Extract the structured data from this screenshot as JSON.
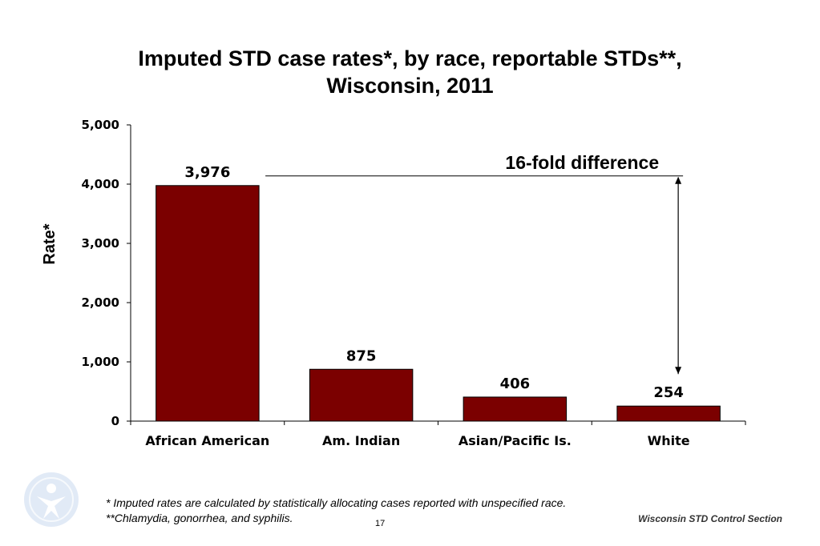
{
  "title_line1": "Imputed STD case rates*, by race, reportable STDs**,",
  "title_line2": "Wisconsin, 2011",
  "chart_data": {
    "type": "bar",
    "title": "Imputed STD case rates*, by race, reportable STDs**, Wisconsin, 2011",
    "categories": [
      "African American",
      "Am. Indian",
      "Asian/Pacific Is.",
      "White"
    ],
    "values": [
      3976,
      875,
      406,
      254
    ],
    "value_labels": [
      "3,976",
      "875",
      "406",
      "254"
    ],
    "xlabel": "",
    "ylabel": "Rate*",
    "ylim": [
      0,
      5000
    ],
    "yticks": [
      0,
      1000,
      2000,
      3000,
      4000,
      5000
    ],
    "ytick_labels": [
      "0",
      "1,000",
      "2,000",
      "3,000",
      "4,000",
      "5,000"
    ],
    "bar_color": "#7B0000",
    "grid": false,
    "annotation": "16-fold difference"
  },
  "footnote1": "*  Imputed rates are calculated by statistically allocating cases reported with unspecified race.",
  "footnote2": "**Chlamydia, gonorrhea, and syphilis.",
  "source": "Wisconsin STD Control Section",
  "page_number": "17"
}
